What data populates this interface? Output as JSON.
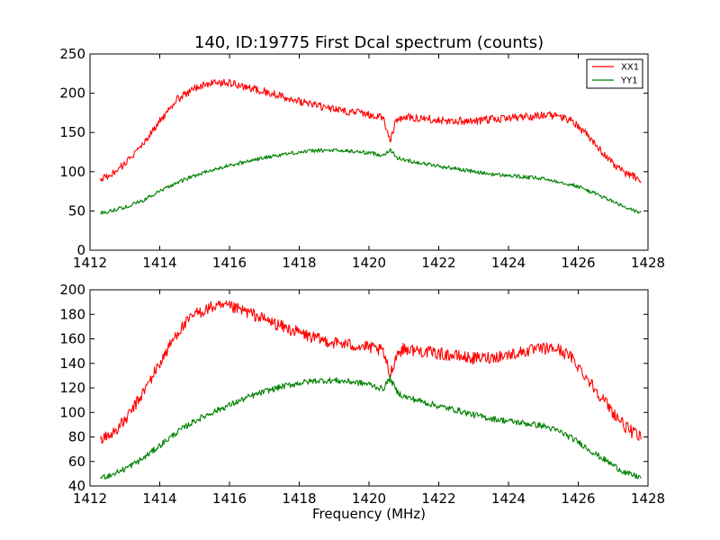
{
  "figure": {
    "title": "140, ID:19775 First Dcal spectrum (counts)",
    "xlabel": "Frequency (MHz)"
  },
  "colors": {
    "XX1": "#ff0000",
    "YY1": "#008000"
  },
  "chart_data": [
    {
      "type": "line",
      "title": "140, ID:19775 First Dcal spectrum (counts)",
      "xlabel": "",
      "ylabel": "",
      "xlim": [
        1412,
        1428
      ],
      "ylim": [
        0,
        250
      ],
      "xticks": [
        1412,
        1414,
        1416,
        1418,
        1420,
        1422,
        1424,
        1426,
        1428
      ],
      "yticks": [
        0,
        50,
        100,
        150,
        200,
        250
      ],
      "legend": {
        "placement": "top-right",
        "entries": [
          "XX1",
          "YY1"
        ]
      },
      "grid": false,
      "series": [
        {
          "name": "XX1",
          "color": "#ff0000",
          "noise": 5,
          "x": [
            1412.3,
            1412.6,
            1413.0,
            1413.5,
            1414.0,
            1414.5,
            1415.0,
            1415.5,
            1416.0,
            1416.5,
            1417.0,
            1417.5,
            1418.0,
            1418.5,
            1419.0,
            1419.5,
            1420.0,
            1420.4,
            1420.6,
            1420.8,
            1421.0,
            1421.5,
            1422.0,
            1422.5,
            1423.0,
            1423.5,
            1424.0,
            1424.5,
            1425.0,
            1425.4,
            1425.8,
            1426.2,
            1426.6,
            1427.0,
            1427.4,
            1427.8
          ],
          "y": [
            90,
            95,
            110,
            135,
            165,
            192,
            207,
            213,
            213,
            207,
            202,
            196,
            190,
            184,
            180,
            176,
            173,
            170,
            140,
            167,
            170,
            168,
            166,
            165,
            164,
            167,
            168,
            170,
            172,
            172,
            165,
            150,
            130,
            110,
            97,
            90
          ]
        },
        {
          "name": "YY1",
          "color": "#008000",
          "noise": 2.5,
          "x": [
            1412.3,
            1412.6,
            1413.0,
            1413.5,
            1414.0,
            1414.5,
            1415.0,
            1415.5,
            1416.0,
            1416.5,
            1417.0,
            1417.5,
            1418.0,
            1418.5,
            1419.0,
            1419.5,
            1420.0,
            1420.4,
            1420.6,
            1420.8,
            1421.0,
            1421.5,
            1422.0,
            1422.5,
            1423.0,
            1423.5,
            1424.0,
            1424.5,
            1425.0,
            1425.5,
            1426.0,
            1426.5,
            1427.0,
            1427.4,
            1427.8
          ],
          "y": [
            48,
            50,
            55,
            63,
            75,
            86,
            95,
            102,
            108,
            113,
            118,
            122,
            125,
            127,
            127,
            126,
            124,
            121,
            128,
            118,
            115,
            111,
            107,
            104,
            100,
            97,
            95,
            93,
            91,
            87,
            81,
            72,
            62,
            53,
            48
          ]
        }
      ]
    },
    {
      "type": "line",
      "title": "",
      "xlabel": "Frequency (MHz)",
      "ylabel": "",
      "xlim": [
        1412,
        1428
      ],
      "ylim": [
        40,
        200
      ],
      "xticks": [
        1412,
        1414,
        1416,
        1418,
        1420,
        1422,
        1424,
        1426,
        1428
      ],
      "yticks": [
        40,
        60,
        80,
        100,
        120,
        140,
        160,
        180,
        200
      ],
      "grid": false,
      "series": [
        {
          "color": "#ff0000",
          "noise": 5,
          "x": [
            1412.3,
            1412.6,
            1413.0,
            1413.5,
            1414.0,
            1414.5,
            1415.0,
            1415.5,
            1416.0,
            1416.5,
            1417.0,
            1417.5,
            1418.0,
            1418.5,
            1419.0,
            1419.5,
            1420.0,
            1420.4,
            1420.6,
            1420.8,
            1421.0,
            1421.5,
            1422.0,
            1422.5,
            1423.0,
            1423.5,
            1424.0,
            1424.5,
            1425.0,
            1425.4,
            1425.8,
            1426.2,
            1426.6,
            1427.0,
            1427.4,
            1427.8
          ],
          "y": [
            78,
            82,
            93,
            115,
            140,
            165,
            180,
            186,
            186,
            182,
            176,
            170,
            165,
            160,
            157,
            155,
            153,
            150,
            130,
            148,
            152,
            150,
            148,
            146,
            144,
            145,
            147,
            150,
            152,
            152,
            145,
            130,
            115,
            100,
            87,
            79
          ]
        },
        {
          "color": "#008000",
          "noise": 2.5,
          "x": [
            1412.3,
            1412.6,
            1413.0,
            1413.5,
            1414.0,
            1414.5,
            1415.0,
            1415.5,
            1416.0,
            1416.5,
            1417.0,
            1417.5,
            1418.0,
            1418.5,
            1419.0,
            1419.5,
            1420.0,
            1420.4,
            1420.6,
            1420.8,
            1421.0,
            1421.5,
            1422.0,
            1422.5,
            1423.0,
            1423.5,
            1424.0,
            1424.5,
            1425.0,
            1425.5,
            1426.0,
            1426.5,
            1427.0,
            1427.4,
            1427.8
          ],
          "y": [
            47,
            49,
            54,
            62,
            73,
            84,
            93,
            100,
            106,
            112,
            117,
            121,
            124,
            126,
            126,
            125,
            123,
            119,
            128,
            117,
            113,
            109,
            105,
            102,
            98,
            95,
            93,
            91,
            89,
            84,
            76,
            66,
            57,
            50,
            47
          ]
        }
      ]
    }
  ]
}
